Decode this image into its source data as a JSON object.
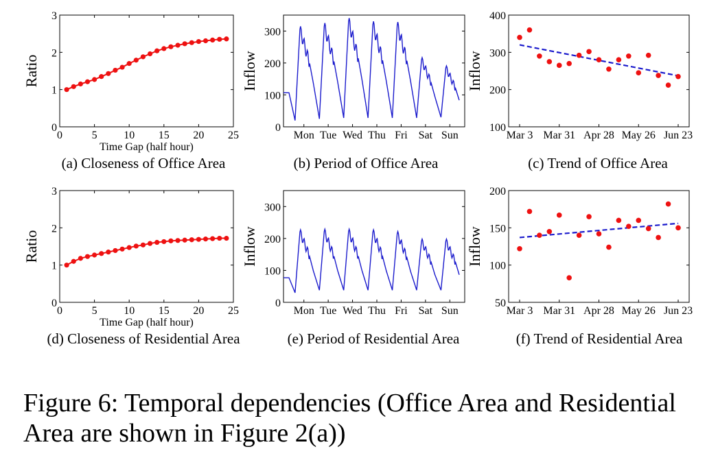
{
  "figure": {
    "caption": "Figure 6: Temporal dependencies (Office Area and Residential Area are shown in Figure 2(a))"
  },
  "chart_data": [
    {
      "id": "a",
      "type": "line",
      "caption": "(a) Closeness of Office Area",
      "xlabel": "Time Gap (half hour)",
      "ylabel": "Ratio",
      "xlim": [
        0,
        25
      ],
      "ylim": [
        0,
        3
      ],
      "xticks": [
        0,
        5,
        10,
        15,
        20,
        25
      ],
      "yticks": [
        0,
        1,
        2,
        3
      ],
      "color": "#ee1111",
      "markers": true,
      "x": [
        1,
        2,
        3,
        4,
        5,
        6,
        7,
        8,
        9,
        10,
        11,
        12,
        13,
        14,
        15,
        16,
        17,
        18,
        19,
        20,
        21,
        22,
        23,
        24
      ],
      "y": [
        1.0,
        1.08,
        1.15,
        1.21,
        1.27,
        1.35,
        1.43,
        1.52,
        1.6,
        1.7,
        1.79,
        1.88,
        1.96,
        2.04,
        2.1,
        2.15,
        2.19,
        2.23,
        2.26,
        2.29,
        2.31,
        2.33,
        2.35,
        2.36
      ]
    },
    {
      "id": "b",
      "type": "line",
      "caption": "(b) Period of Office Area",
      "xlabel": "",
      "ylabel": "Inflow",
      "ylim": [
        0,
        350
      ],
      "yticks": [
        0,
        100,
        200,
        300
      ],
      "xticklabels": [
        "Mon",
        "Tue",
        "Wed",
        "Thu",
        "Fri",
        "Sat",
        "Sun"
      ],
      "color": "#1a1acc",
      "daily_peaks": [
        305,
        315,
        330,
        320,
        318,
        210,
        185
      ],
      "daily_troughs": [
        20,
        25,
        28,
        28,
        28,
        28,
        30
      ]
    },
    {
      "id": "c",
      "type": "scatter",
      "caption": "(c) Trend of Office Area",
      "xlabel": "",
      "ylabel": "Inflow",
      "ylim": [
        100,
        400
      ],
      "yticks": [
        100,
        200,
        300,
        400
      ],
      "xticklabels": [
        "Mar 3",
        "Mar 31",
        "Apr 28",
        "May 26",
        "Jun 23"
      ],
      "x": [
        0,
        1,
        2,
        3,
        4,
        5,
        6,
        7,
        8,
        9,
        10,
        11,
        12,
        13,
        14,
        15,
        16
      ],
      "y": [
        340,
        360,
        290,
        275,
        265,
        270,
        292,
        302,
        280,
        255,
        280,
        290,
        245,
        292,
        238,
        212,
        235
      ],
      "trend": [
        320,
        237
      ],
      "color": "#ee1111",
      "trend_color": "#1a1acc"
    },
    {
      "id": "d",
      "type": "line",
      "caption": "(d) Closeness of Residential Area",
      "xlabel": "Time Gap (half hour)",
      "ylabel": "Ratio",
      "xlim": [
        0,
        25
      ],
      "ylim": [
        0,
        3
      ],
      "xticks": [
        0,
        5,
        10,
        15,
        20,
        25
      ],
      "yticks": [
        0,
        1,
        2,
        3
      ],
      "color": "#ee1111",
      "markers": true,
      "x": [
        1,
        2,
        3,
        4,
        5,
        6,
        7,
        8,
        9,
        10,
        11,
        12,
        13,
        14,
        15,
        16,
        17,
        18,
        19,
        20,
        21,
        22,
        23,
        24
      ],
      "y": [
        1.0,
        1.1,
        1.18,
        1.23,
        1.27,
        1.31,
        1.35,
        1.39,
        1.43,
        1.47,
        1.51,
        1.54,
        1.58,
        1.61,
        1.63,
        1.65,
        1.66,
        1.67,
        1.68,
        1.69,
        1.7,
        1.71,
        1.72,
        1.72
      ]
    },
    {
      "id": "e",
      "type": "line",
      "caption": "(e) Period of Residential Area",
      "xlabel": "",
      "ylabel": "Inflow",
      "ylim": [
        0,
        350
      ],
      "yticks": [
        0,
        100,
        200,
        300
      ],
      "xticklabels": [
        "Mon",
        "Tue",
        "Wed",
        "Thu",
        "Fri",
        "Sat",
        "Sun"
      ],
      "color": "#1a1acc",
      "daily_peaks": [
        220,
        222,
        222,
        220,
        215,
        192,
        192
      ],
      "daily_troughs": [
        30,
        38,
        38,
        38,
        38,
        38,
        38
      ]
    },
    {
      "id": "f",
      "type": "scatter",
      "caption": "(f) Trend of Residential Area",
      "xlabel": "",
      "ylabel": "Inflow",
      "ylim": [
        50,
        200
      ],
      "yticks": [
        50,
        100,
        150,
        200
      ],
      "xticklabels": [
        "Mar 3",
        "Mar 31",
        "Apr 28",
        "May 26",
        "Jun 23"
      ],
      "x": [
        0,
        1,
        2,
        3,
        4,
        5,
        6,
        7,
        8,
        9,
        10,
        11,
        12,
        13,
        14,
        15,
        16
      ],
      "y": [
        122,
        172,
        140,
        145,
        167,
        83,
        140,
        165,
        142,
        124,
        160,
        152,
        160,
        149,
        137,
        182,
        150
      ],
      "trend": [
        137,
        156
      ],
      "color": "#ee1111",
      "trend_color": "#1a1acc"
    }
  ]
}
